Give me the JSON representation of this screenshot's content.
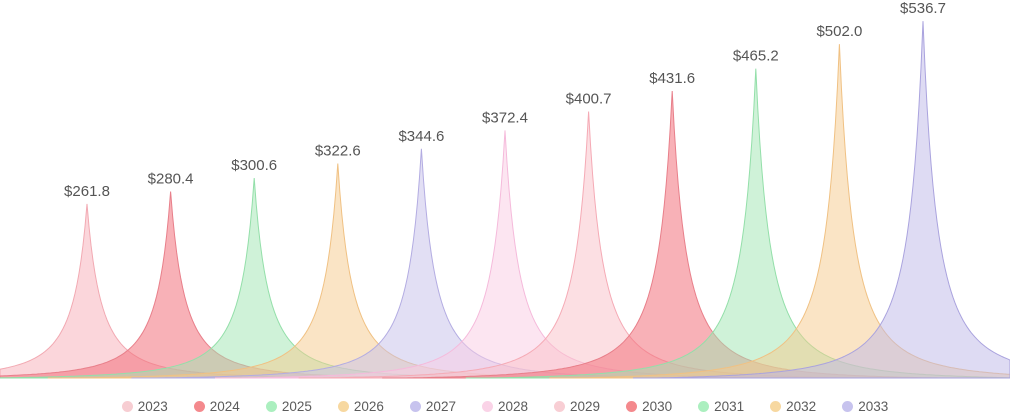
{
  "chart_data": {
    "type": "area",
    "variant": "peaked-density-spikes",
    "title": "",
    "xlabel": "",
    "ylabel": "",
    "categories": [
      "2023",
      "2024",
      "2025",
      "2026",
      "2027",
      "2028",
      "2029",
      "2030",
      "2031",
      "2032",
      "2033"
    ],
    "values": [
      261.8,
      280.4,
      300.6,
      322.6,
      344.6,
      372.4,
      400.7,
      431.6,
      465.2,
      502.0,
      536.7
    ],
    "point_labels": [
      "$261.8",
      "$280.4",
      "$300.6",
      "$322.6",
      "$344.6",
      "$372.4",
      "$400.7",
      "$431.6",
      "$465.2",
      "$502.0",
      "$536.7"
    ],
    "value_prefix": "$",
    "ylim": [
      0,
      560
    ],
    "grid": false,
    "axes_visible": false,
    "legend_position": "bottom-center",
    "label_color": "#555555",
    "series": [
      {
        "name": "2023",
        "value": 261.8,
        "label": "$261.8",
        "base_color": "#f7adb7",
        "fill_opacity": 0.5,
        "stroke": "#f2a9b2",
        "legend_dot": "#f7cdd2"
      },
      {
        "name": "2024",
        "value": 280.4,
        "label": "$280.4",
        "base_color": "#f2717c",
        "fill_opacity": 0.55,
        "stroke": "#e87f8a",
        "legend_dot": "#f4898d"
      },
      {
        "name": "2025",
        "value": 300.6,
        "label": "$300.6",
        "base_color": "#9fe5b1",
        "fill_opacity": 0.5,
        "stroke": "#93dfa9",
        "legend_dot": "#abefbf"
      },
      {
        "name": "2026",
        "value": 322.6,
        "label": "$322.6",
        "base_color": "#f5c98b",
        "fill_opacity": 0.5,
        "stroke": "#f0c183",
        "legend_dot": "#f7d8a0"
      },
      {
        "name": "2027",
        "value": 344.6,
        "label": "$344.6",
        "base_color": "#c5bfe9",
        "fill_opacity": 0.5,
        "stroke": "#b3ace2",
        "legend_dot": "#c7c3ee"
      },
      {
        "name": "2028",
        "value": 372.4,
        "label": "$372.4",
        "base_color": "#f9cbe3",
        "fill_opacity": 0.5,
        "stroke": "#f5badb",
        "legend_dot": "#fad3e7"
      },
      {
        "name": "2029",
        "value": 400.7,
        "label": "$400.7",
        "base_color": "#f9bfc7",
        "fill_opacity": 0.5,
        "stroke": "#f5aab5",
        "legend_dot": "#f8ced4"
      },
      {
        "name": "2030",
        "value": 431.6,
        "label": "$431.6",
        "base_color": "#f2717c",
        "fill_opacity": 0.55,
        "stroke": "#e87f8a",
        "legend_dot": "#f4898d"
      },
      {
        "name": "2031",
        "value": 465.2,
        "label": "$465.2",
        "base_color": "#9fe5b1",
        "fill_opacity": 0.5,
        "stroke": "#93dfa9",
        "legend_dot": "#abefbf"
      },
      {
        "name": "2032",
        "value": 502.0,
        "label": "$502.0",
        "base_color": "#f5c98b",
        "fill_opacity": 0.5,
        "stroke": "#f0c183",
        "legend_dot": "#f7d8a0"
      },
      {
        "name": "2033",
        "value": 536.7,
        "label": "$536.7",
        "base_color": "#bdb7e7",
        "fill_opacity": 0.5,
        "stroke": "#aaa3de",
        "legend_dot": "#c7c3ee"
      }
    ]
  }
}
